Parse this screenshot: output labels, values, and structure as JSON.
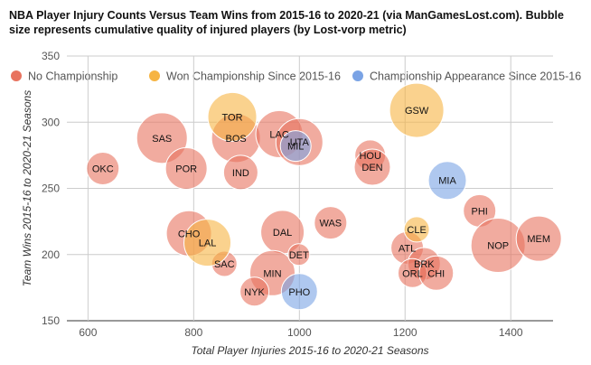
{
  "chart_data": {
    "type": "bubble",
    "title": "NBA Player Injury Counts Versus Team Wins from 2015-16 to 2020-21 (via ManGamesLost.com). Bubble size represents cumulative quality of injured players (by Lost-vorp metric)",
    "xlabel": "Total Player Injuries 2015-16 to 2020-21 Seasons",
    "ylabel": "Team Wins 2015-16 to 2020-21 Seasons",
    "xlim": [
      560,
      1480
    ],
    "ylim": [
      150,
      350
    ],
    "x_ticks": [
      600,
      800,
      1000,
      1200,
      1400
    ],
    "y_ticks": [
      150,
      200,
      250,
      300,
      350
    ],
    "grid": true,
    "legend_position": "top",
    "colors": {
      "No Championship": "#e8735f",
      "Won Championship Since 2015-16": "#f6b443",
      "Championship Appearance Since 2015-16": "#7aa3e5"
    },
    "series": [
      {
        "name": "No Championship",
        "points": [
          {
            "label": "OKC",
            "x": 628,
            "y": 265,
            "size": 18
          },
          {
            "label": "SAS",
            "x": 740,
            "y": 288,
            "size": 28
          },
          {
            "label": "POR",
            "x": 786,
            "y": 265,
            "size": 23
          },
          {
            "label": "BOS",
            "x": 880,
            "y": 288,
            "size": 27
          },
          {
            "label": "IND",
            "x": 889,
            "y": 262,
            "size": 19
          },
          {
            "label": "LAC",
            "x": 962,
            "y": 291,
            "size": 26
          },
          {
            "label": "UTA",
            "x": 1000,
            "y": 285,
            "size": 26
          },
          {
            "label": "HOU",
            "x": 1134,
            "y": 275,
            "size": 17
          },
          {
            "label": "DEN",
            "x": 1138,
            "y": 266,
            "size": 20
          },
          {
            "label": "PHI",
            "x": 1341,
            "y": 233,
            "size": 18
          },
          {
            "label": "CHO",
            "x": 791,
            "y": 216,
            "size": 25
          },
          {
            "label": "DAL",
            "x": 968,
            "y": 217,
            "size": 24
          },
          {
            "label": "WAS",
            "x": 1059,
            "y": 224,
            "size": 18
          },
          {
            "label": "SAC",
            "x": 858,
            "y": 193,
            "size": 14
          },
          {
            "label": "MIN",
            "x": 949,
            "y": 186,
            "size": 25
          },
          {
            "label": "DET",
            "x": 999,
            "y": 200,
            "size": 12
          },
          {
            "label": "NYK",
            "x": 915,
            "y": 172,
            "size": 16
          },
          {
            "label": "ATL",
            "x": 1204,
            "y": 205,
            "size": 18
          },
          {
            "label": "BRK",
            "x": 1236,
            "y": 193,
            "size": 18
          },
          {
            "label": "ORL",
            "x": 1214,
            "y": 186,
            "size": 16
          },
          {
            "label": "CHI",
            "x": 1259,
            "y": 186,
            "size": 19
          },
          {
            "label": "NOP",
            "x": 1376,
            "y": 207,
            "size": 30
          },
          {
            "label": "MEM",
            "x": 1453,
            "y": 212,
            "size": 25
          }
        ]
      },
      {
        "name": "Won Championship Since 2015-16",
        "points": [
          {
            "label": "TOR",
            "x": 873,
            "y": 304,
            "size": 27
          },
          {
            "label": "GSW",
            "x": 1222,
            "y": 309,
            "size": 30
          },
          {
            "label": "LAL",
            "x": 826,
            "y": 209,
            "size": 26
          },
          {
            "label": "CLE",
            "x": 1222,
            "y": 219,
            "size": 14
          }
        ]
      },
      {
        "name": "Championship Appearance Since 2015-16",
        "points": [
          {
            "label": "MIL",
            "x": 993,
            "y": 282,
            "size": 17
          },
          {
            "label": "MIA",
            "x": 1280,
            "y": 256,
            "size": 21
          },
          {
            "label": "PHO",
            "x": 1000,
            "y": 172,
            "size": 20
          }
        ]
      }
    ]
  }
}
